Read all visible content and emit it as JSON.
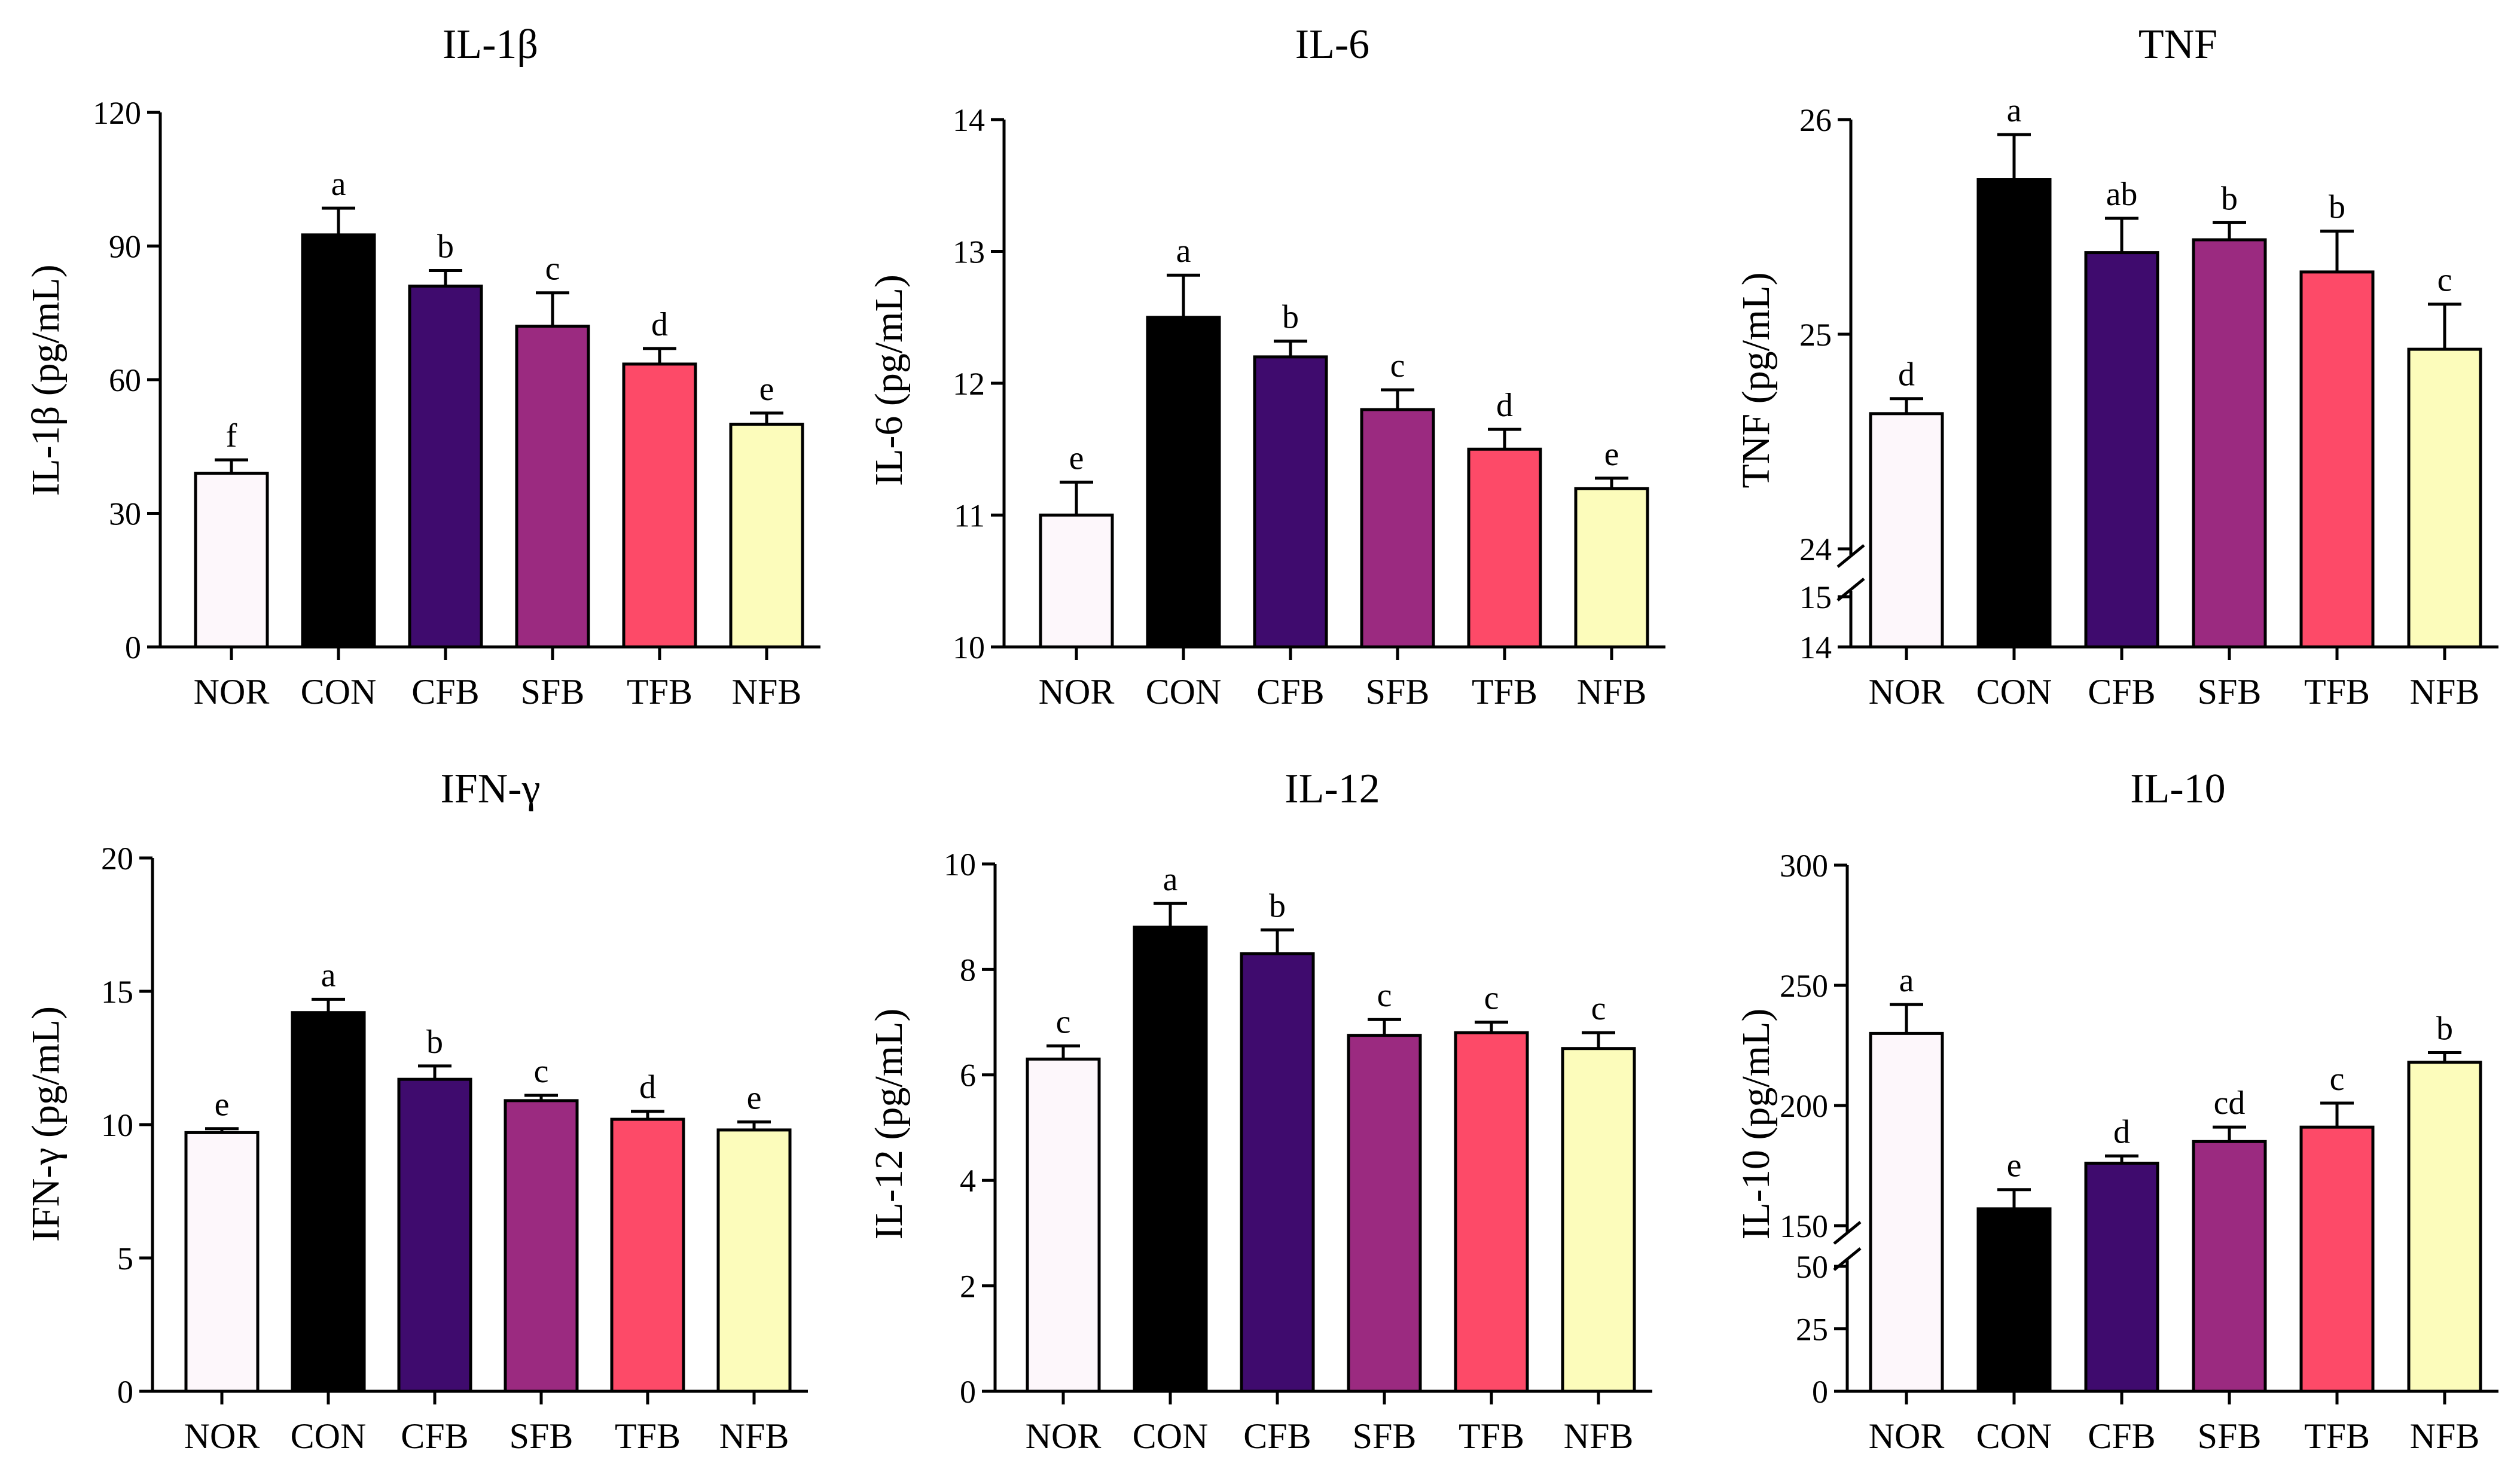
{
  "chart_data": [
    {
      "type": "bar",
      "title": "IL-1β",
      "ylabel": "IL-1β (pg/mL)",
      "categories": [
        "NOR",
        "CON",
        "CFB",
        "SFB",
        "TFB",
        "NFB"
      ],
      "values": [
        39,
        92.5,
        81,
        72,
        63.5,
        50
      ],
      "errors": [
        3,
        6,
        3.5,
        7.5,
        3.5,
        2.5
      ],
      "significance": [
        "f",
        "a",
        "b",
        "c",
        "d",
        "e"
      ],
      "ylim": [
        0,
        120
      ],
      "ticks": [
        0,
        30,
        60,
        90,
        120
      ],
      "axis_break": null
    },
    {
      "type": "bar",
      "title": "IL-6",
      "ylabel": "IL-6 (pg/mL)",
      "categories": [
        "NOR",
        "CON",
        "CFB",
        "SFB",
        "TFB",
        "NFB"
      ],
      "values": [
        11,
        12.5,
        12.2,
        11.8,
        11.5,
        11.2
      ],
      "errors": [
        0.25,
        0.32,
        0.12,
        0.15,
        0.15,
        0.08
      ],
      "significance": [
        "e",
        "a",
        "b",
        "c",
        "d",
        "e"
      ],
      "ylim": [
        10,
        14
      ],
      "ticks": [
        10,
        11,
        12,
        13,
        14
      ],
      "axis_break": null
    },
    {
      "type": "bar",
      "title": "TNF",
      "ylabel": "TNF (pg/mL)",
      "categories": [
        "NOR",
        "CON",
        "CFB",
        "SFB",
        "TFB",
        "NFB"
      ],
      "values": [
        24.63,
        25.72,
        25.38,
        25.44,
        25.29,
        24.93
      ],
      "errors": [
        0.07,
        0.21,
        0.16,
        0.08,
        0.19,
        0.21
      ],
      "significance": [
        "d",
        "a",
        "ab",
        "b",
        "b",
        "c"
      ],
      "ylim": [
        14,
        26
      ],
      "ticks": [
        14,
        15,
        24,
        25,
        26
      ],
      "axis_break": {
        "lower": [
          14,
          15
        ],
        "upper": [
          24,
          26
        ]
      }
    },
    {
      "type": "bar",
      "title": "IFN-γ",
      "ylabel": "IFN-γ (pg/mL)",
      "categories": [
        "NOR",
        "CON",
        "CFB",
        "SFB",
        "TFB",
        "NFB"
      ],
      "values": [
        9.7,
        14.2,
        11.7,
        10.9,
        10.2,
        9.8
      ],
      "errors": [
        0.15,
        0.5,
        0.5,
        0.2,
        0.3,
        0.3
      ],
      "significance": [
        "e",
        "a",
        "b",
        "c",
        "d",
        "e"
      ],
      "ylim": [
        0,
        20
      ],
      "ticks": [
        0,
        5,
        10,
        15,
        20
      ],
      "axis_break": null
    },
    {
      "type": "bar",
      "title": "IL-12",
      "ylabel": "IL-12 (pg/mL)",
      "categories": [
        "NOR",
        "CON",
        "CFB",
        "SFB",
        "TFB",
        "NFB"
      ],
      "values": [
        6.3,
        8.8,
        8.3,
        6.75,
        6.8,
        6.5
      ],
      "errors": [
        0.25,
        0.45,
        0.45,
        0.3,
        0.2,
        0.3
      ],
      "significance": [
        "c",
        "a",
        "b",
        "c",
        "c",
        "c"
      ],
      "ylim": [
        0,
        10
      ],
      "ticks": [
        0,
        2,
        4,
        6,
        8,
        10
      ],
      "axis_break": null
    },
    {
      "type": "bar",
      "title": "IL-10",
      "ylabel": "IL-10 (pg/mL)",
      "categories": [
        "NOR",
        "CON",
        "CFB",
        "SFB",
        "TFB",
        "NFB"
      ],
      "values": [
        230,
        157,
        176,
        185,
        191,
        218
      ],
      "errors": [
        12,
        8,
        3,
        6,
        10,
        4
      ],
      "significance": [
        "a",
        "e",
        "d",
        "cd",
        "c",
        "b"
      ],
      "ylim": [
        0,
        300
      ],
      "ticks": [
        0,
        25,
        50,
        150,
        200,
        250,
        300
      ],
      "axis_break": {
        "lower": [
          0,
          50
        ],
        "upper": [
          150,
          300
        ]
      }
    }
  ],
  "bar_colors": [
    "#FDF7FB",
    "#000000",
    "#3F0B6E",
    "#9B2A80",
    "#FD4A68",
    "#FCFCBB"
  ]
}
